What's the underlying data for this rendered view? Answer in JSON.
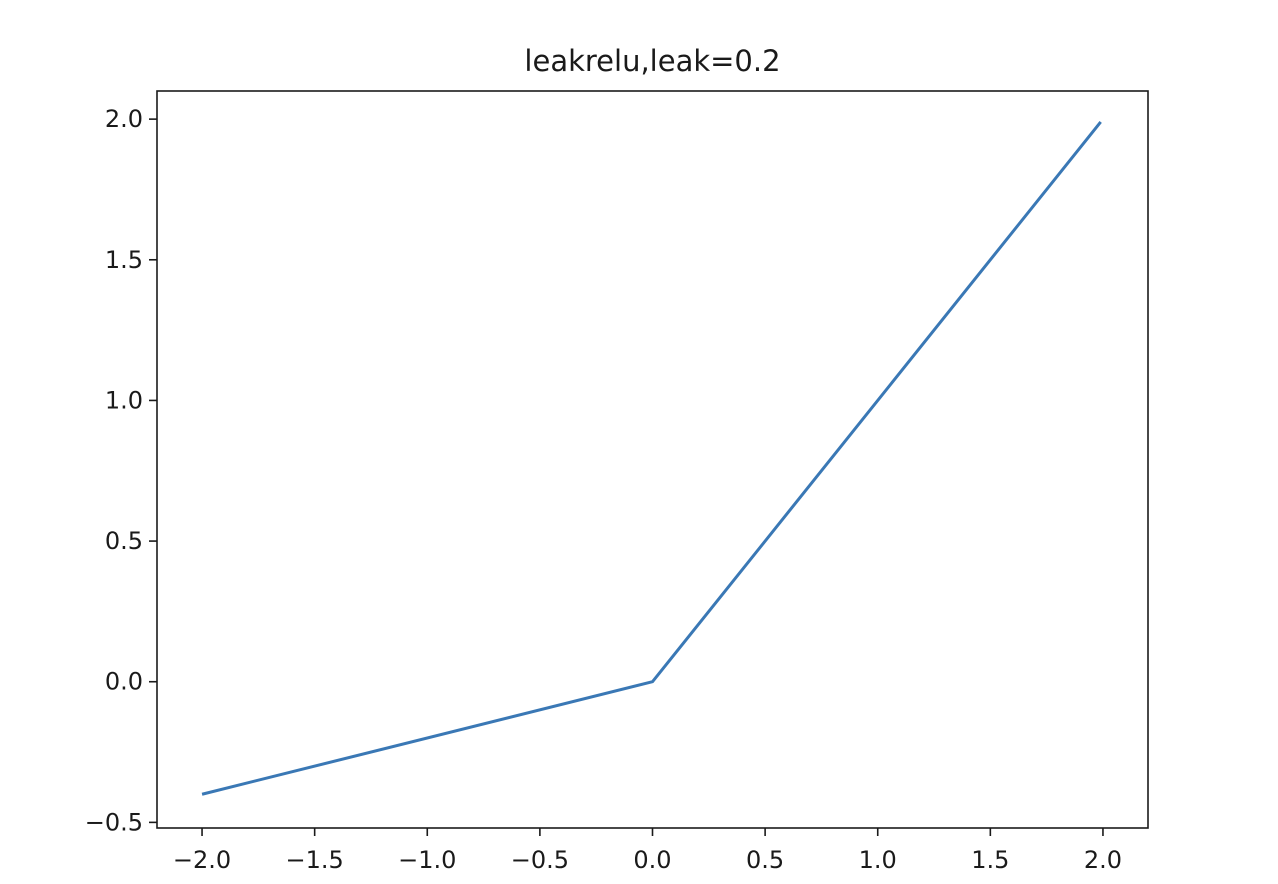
{
  "chart_data": {
    "type": "line",
    "title": "leakrelu,leak=0.2",
    "xlabel": "",
    "ylabel": "",
    "xlim": [
      -2.2,
      2.2
    ],
    "ylim": [
      -0.52,
      2.1
    ],
    "grid": false,
    "x_ticks": [
      -2.0,
      -1.5,
      -1.0,
      -0.5,
      0.0,
      0.5,
      1.0,
      1.5,
      2.0
    ],
    "x_tick_labels": [
      "−2.0",
      "−1.5",
      "−1.0",
      "−0.5",
      "0.0",
      "0.5",
      "1.0",
      "1.5",
      "2.0"
    ],
    "y_ticks": [
      -0.5,
      0.0,
      0.5,
      1.0,
      1.5,
      2.0
    ],
    "y_tick_labels": [
      "−0.5",
      "0.0",
      "0.5",
      "1.0",
      "1.5",
      "2.0"
    ],
    "series": [
      {
        "name": "leakrelu",
        "color": "#3a78b5",
        "x": [
          -2.0,
          0.0,
          1.99
        ],
        "y": [
          -0.4,
          0.0,
          1.99
        ]
      }
    ]
  }
}
